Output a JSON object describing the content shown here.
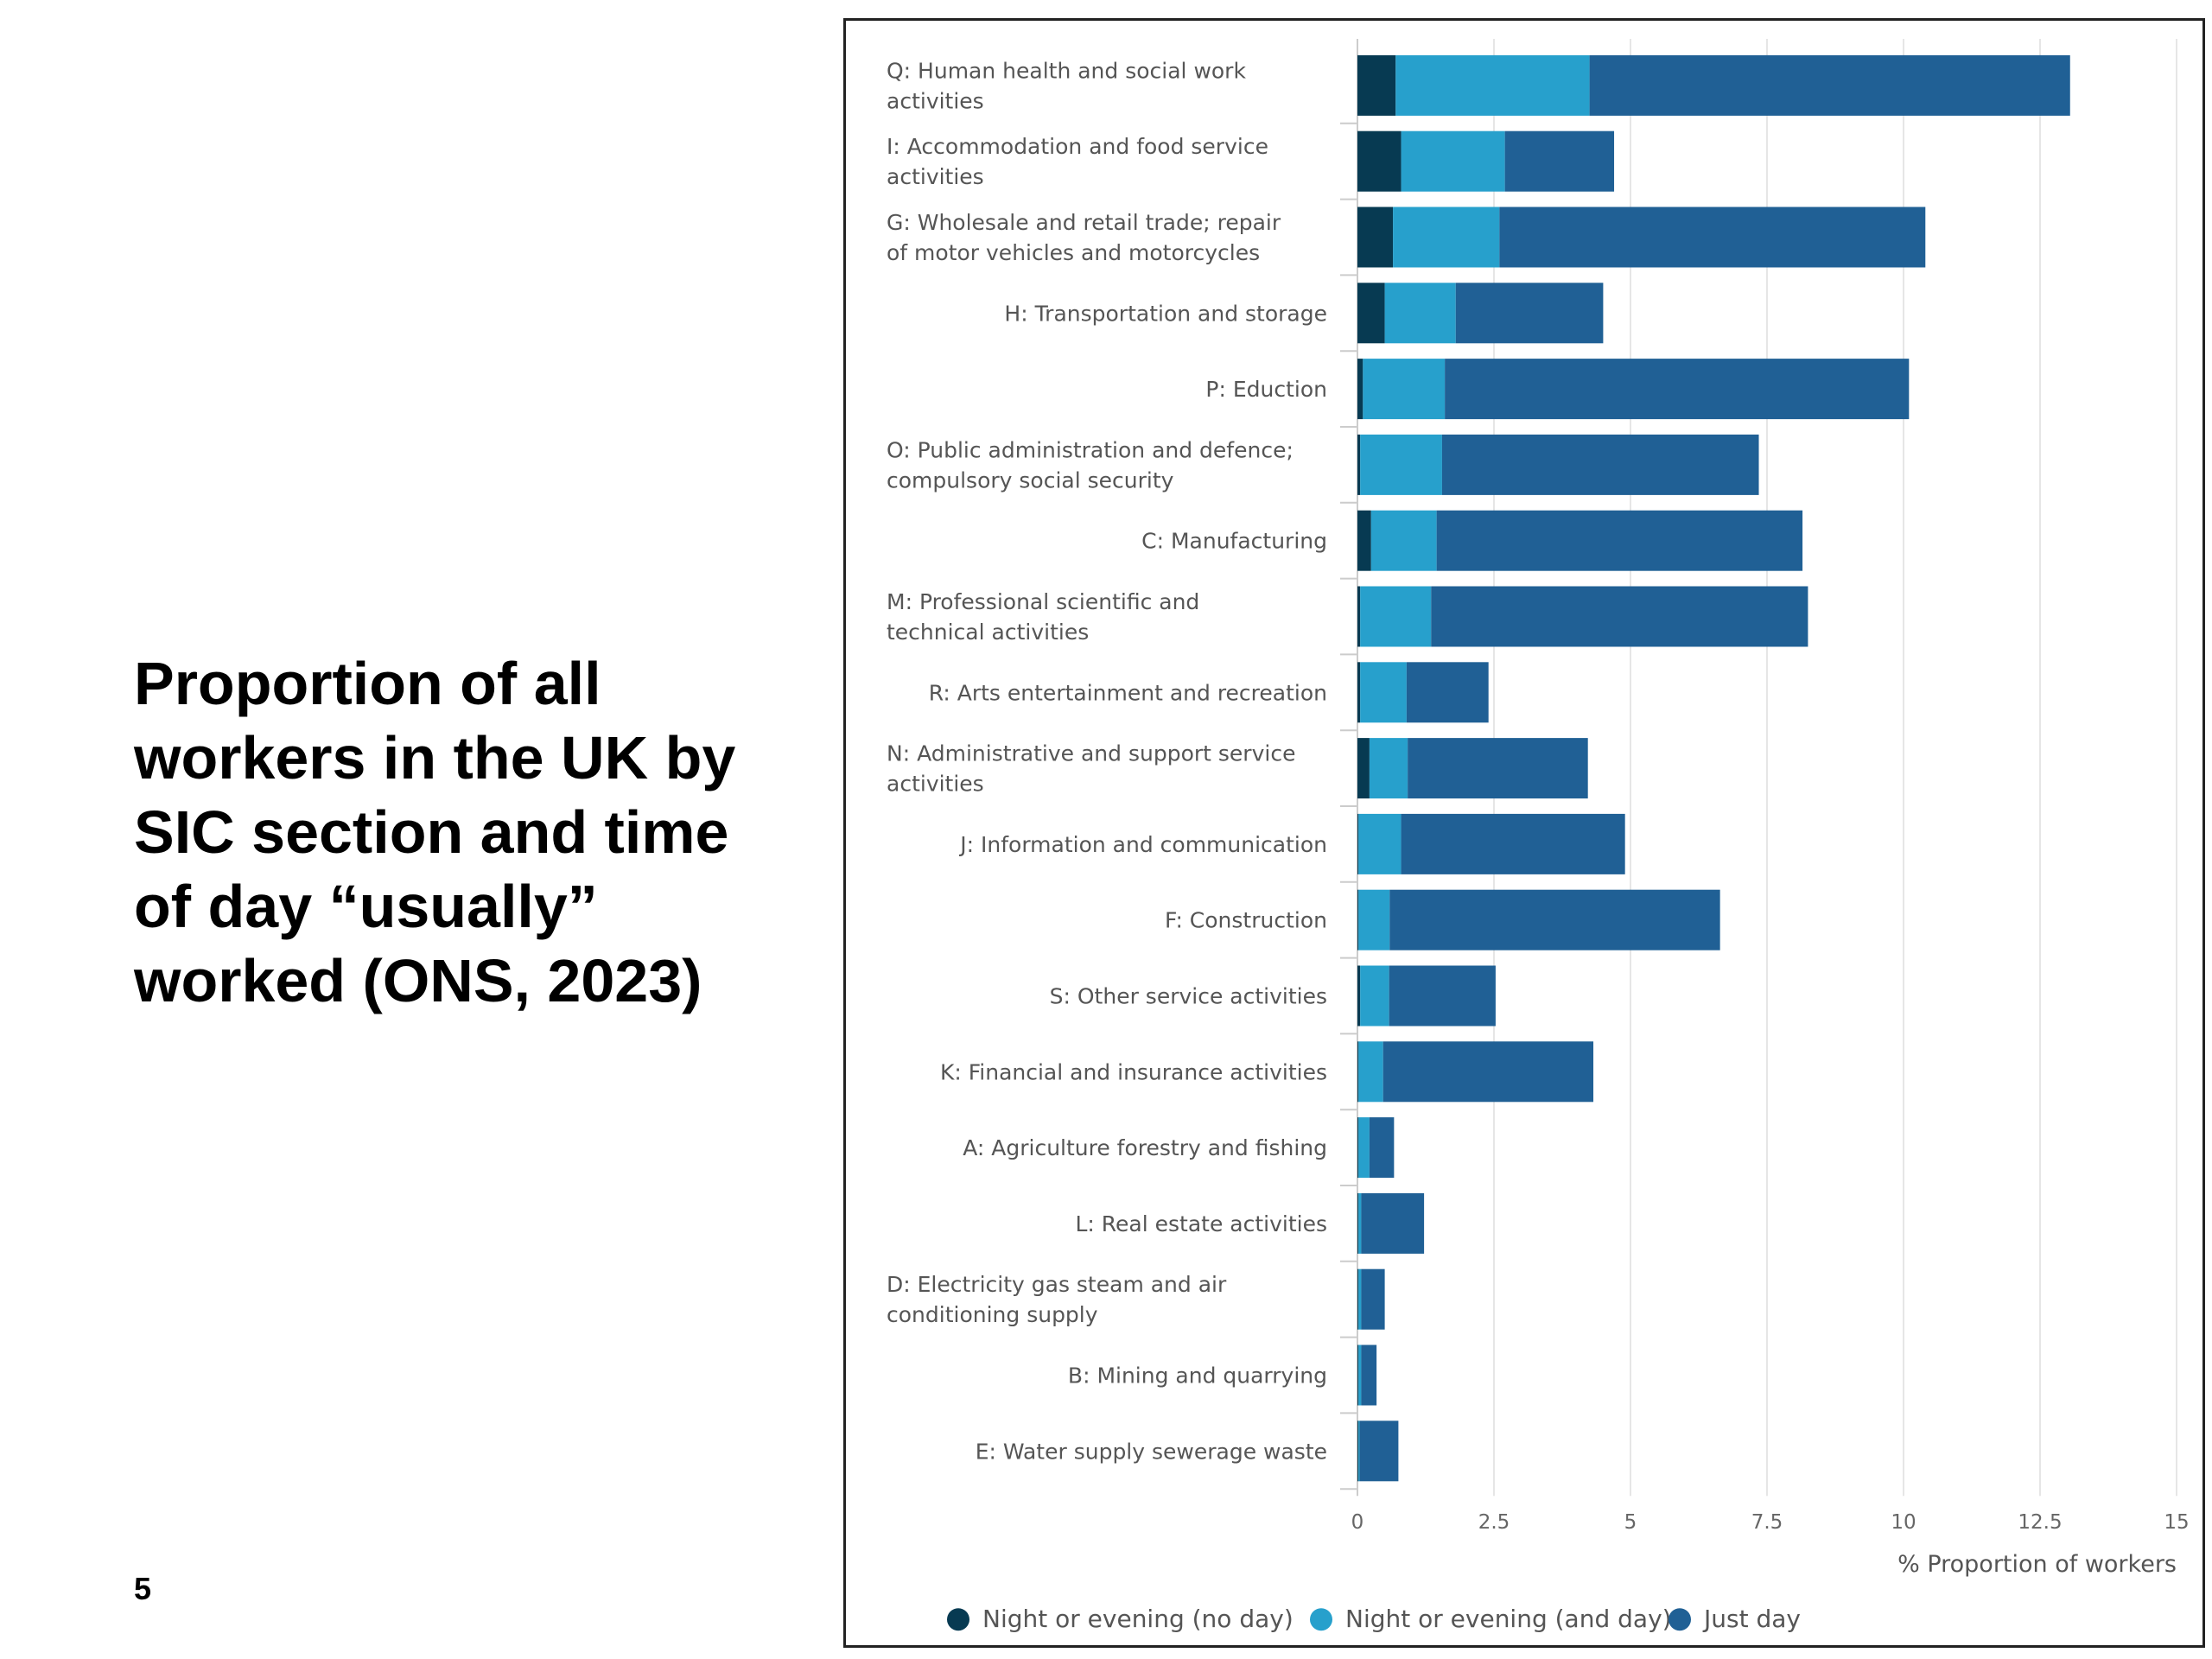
{
  "slide": {
    "title": "Proportion of all workers in the UK by SIC section and time of day “usually” worked (ONS, 2023)",
    "page_number": "5"
  },
  "chart_data": {
    "type": "bar",
    "orientation": "horizontal",
    "stacked": true,
    "categories": [
      "Q: Human health and social work activities",
      "I: Accommodation and food service activities",
      "G: Wholesale and retail trade; repair of motor vehicles and motorcycles",
      "H: Transportation and storage",
      "P: Eduction",
      "O: Public administration and defence; compulsory social security",
      "C: Manufacturing",
      "M: Professional scientific and technical activities",
      "R: Arts entertainment and recreation",
      "N: Administrative and support service activities",
      "J: Information and communication",
      "F: Construction",
      "S: Other service activities",
      "K: Financial and insurance activities",
      "A: Agriculture forestry and fishing",
      "L: Real estate activities",
      "D: Electricity gas steam and air conditioning supply",
      "B: Mining and quarrying",
      "E: Water supply sewerage waste"
    ],
    "series": [
      {
        "name": "Night or evening (no day)",
        "color": "#073a52",
        "values": [
          0.7,
          0.8,
          0.65,
          0.5,
          0.1,
          0.05,
          0.25,
          0.05,
          0.05,
          0.22,
          0.02,
          0.02,
          0.05,
          0.02,
          0.02,
          0.02,
          0.02,
          0.02,
          0.02
        ]
      },
      {
        "name": "Night or evening (and day)",
        "color": "#27a0cc",
        "values": [
          3.55,
          1.9,
          1.95,
          1.3,
          1.5,
          1.5,
          1.2,
          1.3,
          0.85,
          0.7,
          0.78,
          0.57,
          0.53,
          0.45,
          0.2,
          0.05,
          0.05,
          0.05,
          0.02
        ]
      },
      {
        "name": "Just day",
        "color": "#206095",
        "values": [
          8.8,
          2.0,
          7.8,
          2.7,
          8.5,
          5.8,
          6.7,
          6.9,
          1.5,
          3.3,
          4.1,
          6.05,
          1.95,
          3.85,
          0.45,
          1.15,
          0.43,
          0.28,
          0.71
        ]
      }
    ],
    "xlim": [
      0,
      15
    ],
    "xticks": [
      0,
      2.5,
      5,
      7.5,
      10,
      12.5,
      15
    ],
    "xlabel": "% Proportion of workers",
    "ylabel": "",
    "grid": true,
    "legend_position": "bottom"
  }
}
